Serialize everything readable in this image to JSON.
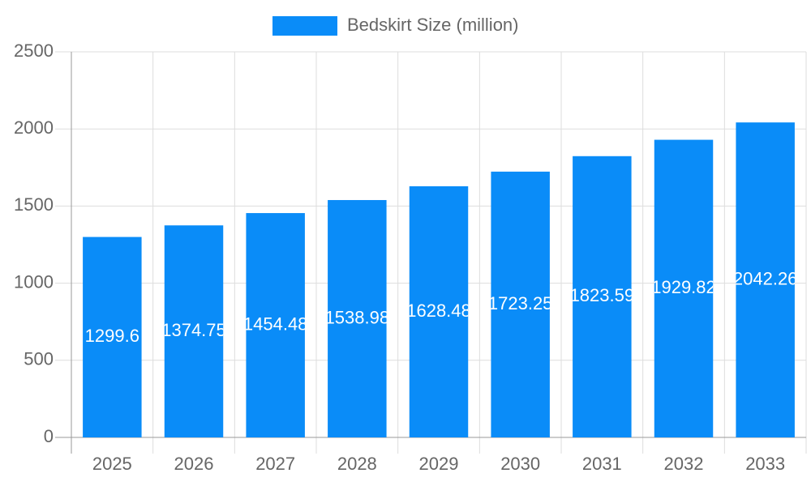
{
  "chart_data": {
    "type": "bar",
    "legend": "Bedskirt Size (million)",
    "categories": [
      "2025",
      "2026",
      "2027",
      "2028",
      "2029",
      "2030",
      "2031",
      "2032",
      "2033"
    ],
    "values": [
      1299.6,
      1374.75,
      1454.48,
      1538.98,
      1628.48,
      1723.25,
      1823.59,
      1929.82,
      2042.26
    ],
    "color": "#0a8cf8",
    "ylim": [
      0,
      2500
    ],
    "yticks": [
      0,
      500,
      1000,
      1500,
      2000,
      2500
    ],
    "grid": true
  }
}
